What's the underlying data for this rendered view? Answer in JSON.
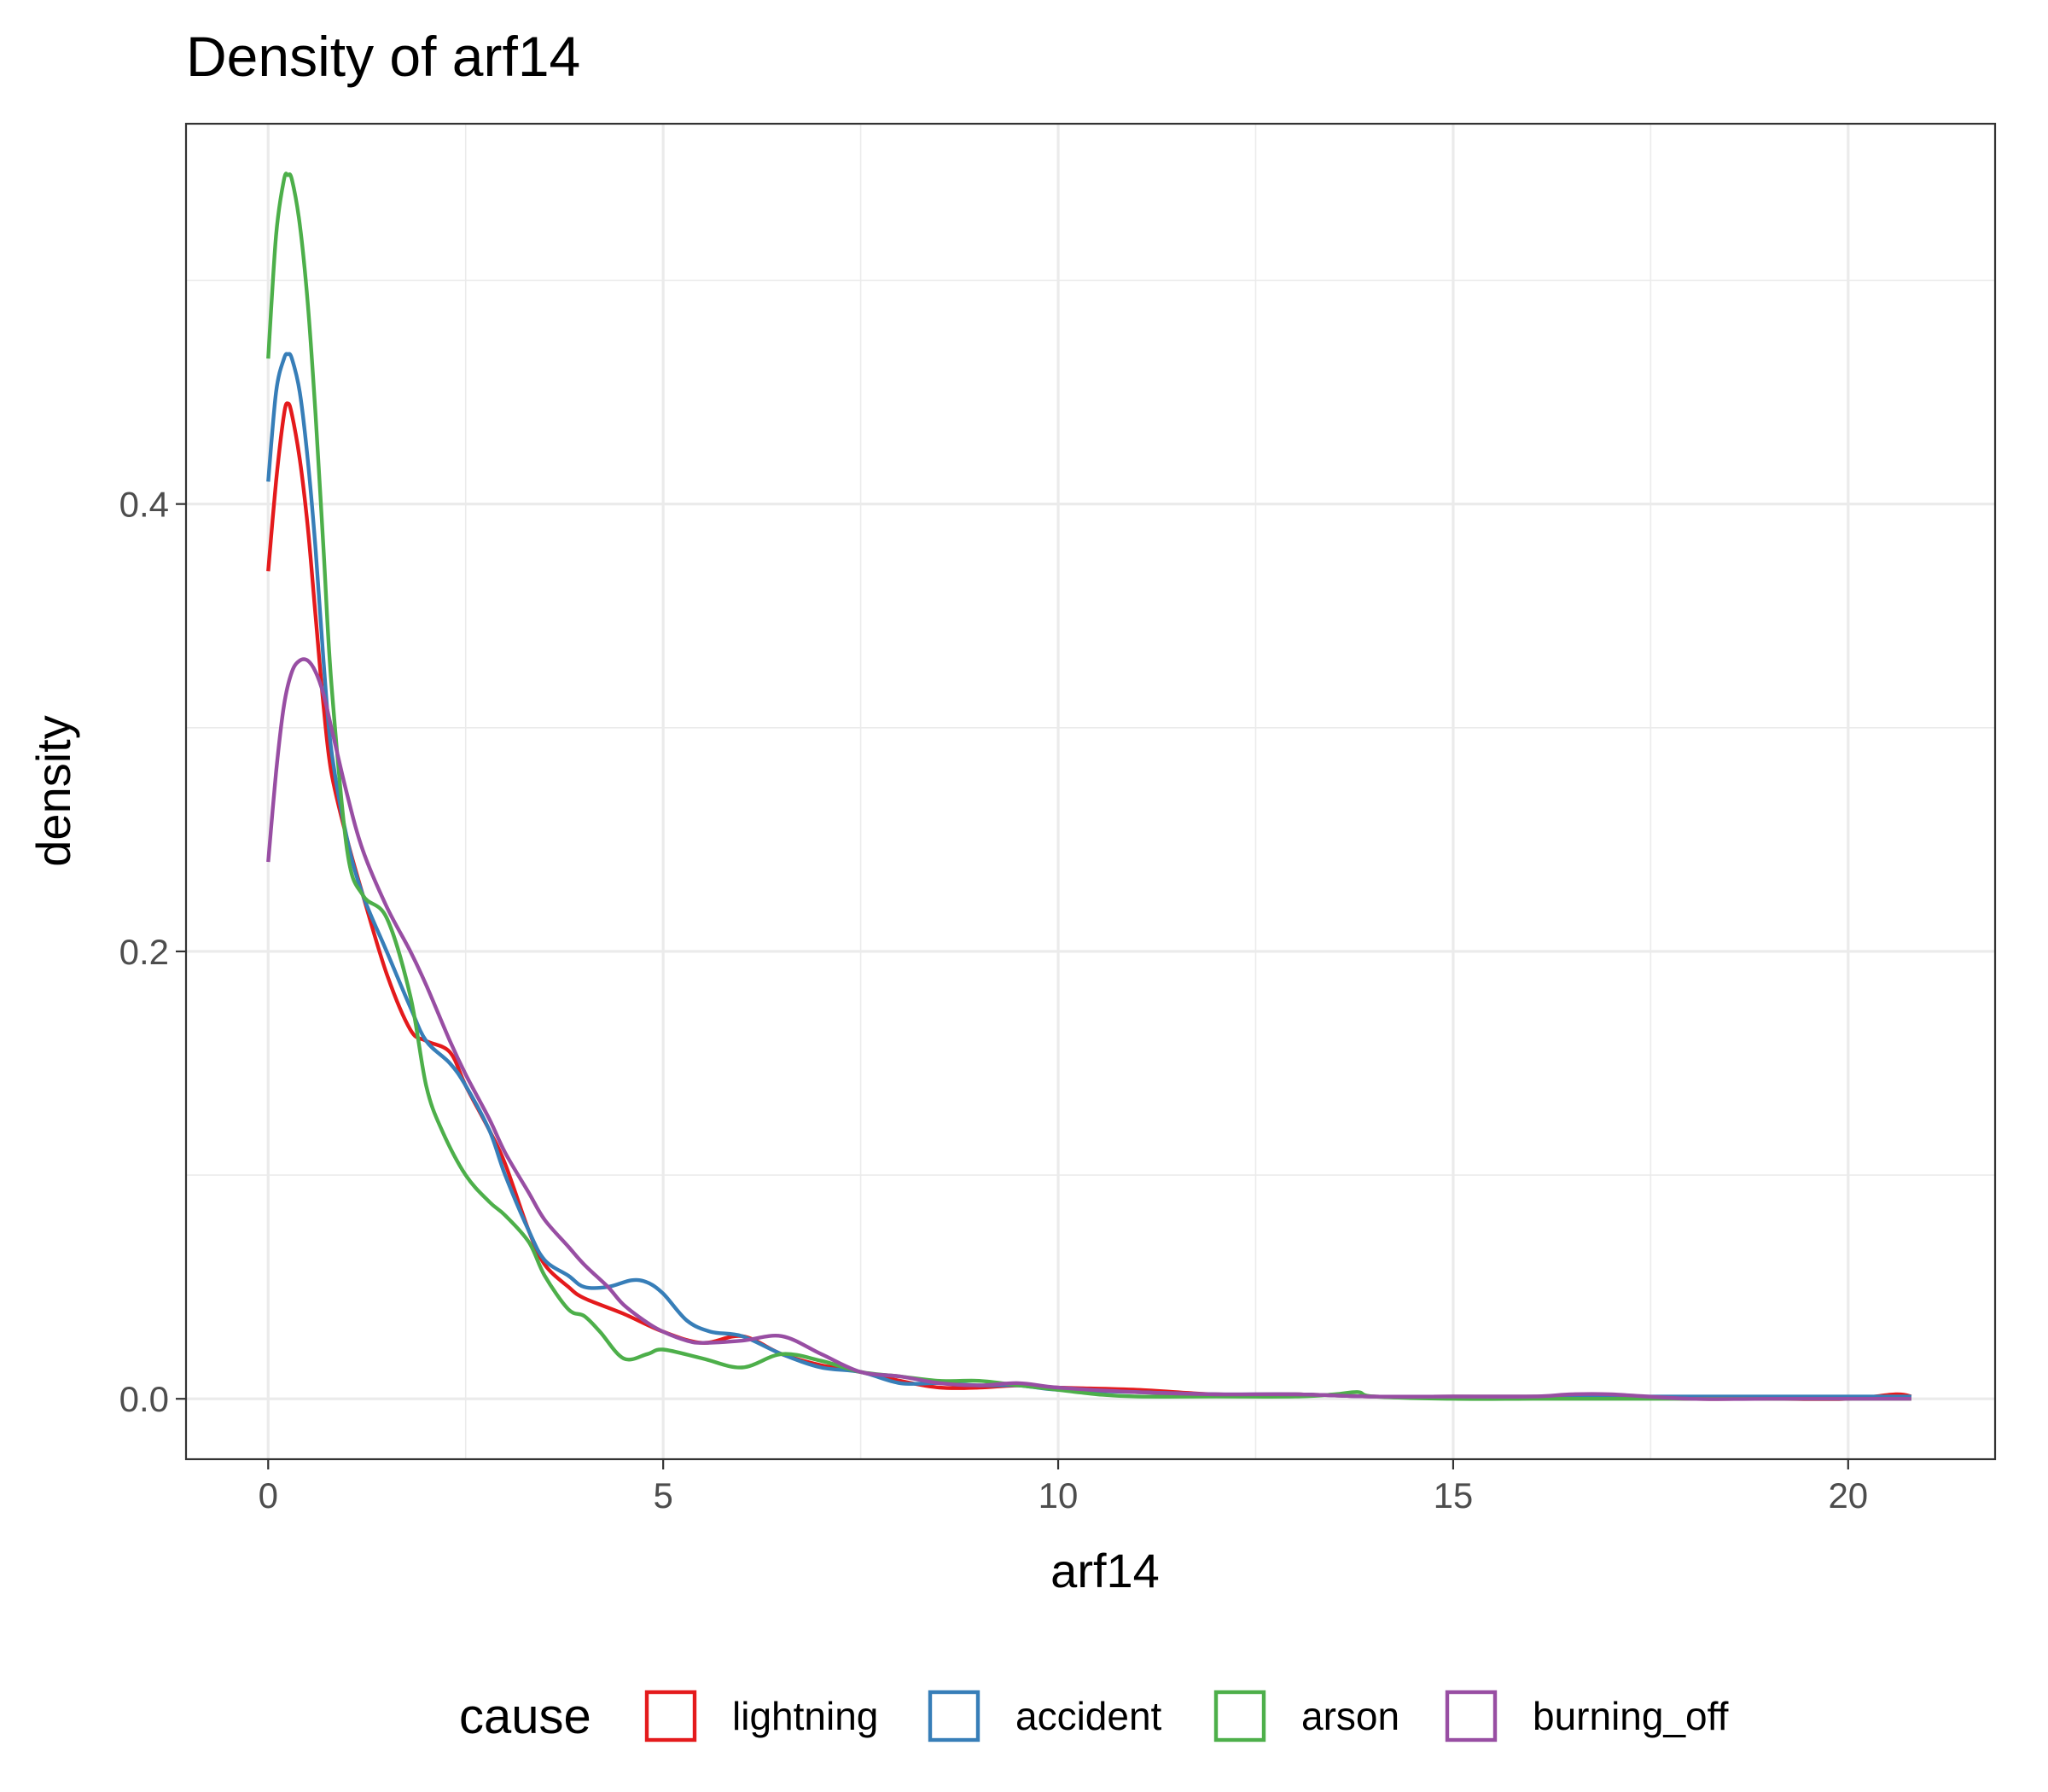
{
  "chart_data": {
    "type": "line",
    "title": "Density of arf14",
    "xlabel": "arf14",
    "ylabel": "density",
    "xlim": [
      -1.04,
      21.86
    ],
    "ylim": [
      -0.027,
      0.57
    ],
    "xticks": [
      0,
      5,
      10,
      15,
      20
    ],
    "xtick_labels": [
      "0",
      "5",
      "10",
      "15",
      "20"
    ],
    "yticks": [
      0.0,
      0.2,
      0.4
    ],
    "ytick_labels": [
      "0.0",
      "0.2",
      "0.4"
    ],
    "grid": true,
    "legend_title": "cause",
    "legend_position": "bottom",
    "series": [
      {
        "name": "lightning",
        "color": "#e41a1c",
        "x": [
          0,
          0.1,
          0.2,
          0.25,
          0.3,
          0.4,
          0.5,
          0.6,
          0.7,
          0.8,
          1.0,
          1.2,
          1.5,
          1.8,
          2.0,
          2.3,
          2.5,
          2.8,
          3.0,
          3.3,
          3.5,
          3.8,
          4.0,
          4.5,
          5.0,
          5.5,
          6.0,
          6.5,
          7.0,
          7.5,
          8.0,
          8.5,
          9.0,
          9.5,
          10,
          11,
          12,
          13,
          14,
          15,
          16,
          17,
          18,
          19,
          20,
          20.6,
          20.8
        ],
        "y": [
          0.37,
          0.41,
          0.44,
          0.445,
          0.44,
          0.42,
          0.39,
          0.35,
          0.31,
          0.28,
          0.25,
          0.225,
          0.19,
          0.165,
          0.16,
          0.155,
          0.14,
          0.12,
          0.105,
          0.075,
          0.06,
          0.05,
          0.045,
          0.038,
          0.03,
          0.025,
          0.028,
          0.02,
          0.015,
          0.012,
          0.008,
          0.005,
          0.005,
          0.006,
          0.005,
          0.004,
          0.002,
          0.002,
          0.001,
          0.001,
          0.001,
          0.001,
          0,
          0,
          0,
          0.002,
          0.001
        ]
      },
      {
        "name": "accident",
        "color": "#377eb8",
        "x": [
          0,
          0.1,
          0.2,
          0.25,
          0.3,
          0.4,
          0.5,
          0.6,
          0.7,
          0.8,
          1.0,
          1.2,
          1.5,
          1.8,
          2.0,
          2.3,
          2.5,
          2.8,
          3.0,
          3.3,
          3.5,
          3.8,
          4.0,
          4.3,
          4.6,
          4.8,
          5.0,
          5.3,
          5.6,
          6.0,
          6.5,
          7.0,
          7.5,
          8.0,
          8.5,
          9.0,
          9.5,
          10,
          11,
          12,
          13,
          14,
          15,
          16,
          17,
          18,
          19,
          20,
          20.8
        ],
        "y": [
          0.41,
          0.45,
          0.465,
          0.467,
          0.465,
          0.45,
          0.42,
          0.38,
          0.33,
          0.29,
          0.25,
          0.225,
          0.2,
          0.175,
          0.16,
          0.15,
          0.14,
          0.12,
          0.1,
          0.075,
          0.062,
          0.055,
          0.05,
          0.05,
          0.053,
          0.052,
          0.047,
          0.035,
          0.03,
          0.028,
          0.02,
          0.014,
          0.012,
          0.007,
          0.007,
          0.006,
          0.006,
          0.004,
          0.003,
          0.002,
          0.002,
          0.001,
          0.001,
          0.001,
          0.001,
          0.001,
          0.001,
          0.001,
          0.001
        ]
      },
      {
        "name": "arson",
        "color": "#4daf4a",
        "x": [
          0,
          0.1,
          0.2,
          0.25,
          0.3,
          0.4,
          0.5,
          0.6,
          0.7,
          0.8,
          1.0,
          1.2,
          1.5,
          1.8,
          2.0,
          2.2,
          2.5,
          2.8,
          3.0,
          3.3,
          3.5,
          3.8,
          4.0,
          4.2,
          4.5,
          4.8,
          5.0,
          5.5,
          6.0,
          6.5,
          7.0,
          7.5,
          8.0,
          8.5,
          9.0,
          9.5,
          10,
          10.5,
          11,
          12,
          13,
          13.5,
          13.8,
          14,
          15,
          16,
          17,
          18,
          19,
          20,
          20.8
        ],
        "y": [
          0.465,
          0.52,
          0.545,
          0.547,
          0.545,
          0.525,
          0.49,
          0.44,
          0.38,
          0.32,
          0.245,
          0.225,
          0.215,
          0.18,
          0.14,
          0.12,
          0.1,
          0.088,
          0.082,
          0.07,
          0.055,
          0.04,
          0.037,
          0.03,
          0.018,
          0.02,
          0.022,
          0.018,
          0.014,
          0.02,
          0.017,
          0.012,
          0.01,
          0.008,
          0.008,
          0.006,
          0.004,
          0.002,
          0.001,
          0.001,
          0.001,
          0.002,
          0.003,
          0.001,
          0,
          0,
          0,
          0,
          0,
          0,
          0
        ]
      },
      {
        "name": "burning_off",
        "color": "#984ea3",
        "x": [
          0,
          0.1,
          0.2,
          0.3,
          0.4,
          0.5,
          0.6,
          0.7,
          0.8,
          1.0,
          1.2,
          1.5,
          1.8,
          2.0,
          2.3,
          2.5,
          2.8,
          3.0,
          3.3,
          3.5,
          3.8,
          4.0,
          4.3,
          4.5,
          4.8,
          5.0,
          5.3,
          5.5,
          6.0,
          6.5,
          7.0,
          7.5,
          8.0,
          8.5,
          9.0,
          9.5,
          10,
          11,
          12,
          13,
          14,
          15,
          16,
          16.5,
          17,
          18,
          19,
          20,
          20.8
        ],
        "y": [
          0.24,
          0.28,
          0.31,
          0.325,
          0.33,
          0.33,
          0.325,
          0.315,
          0.3,
          0.27,
          0.245,
          0.22,
          0.2,
          0.185,
          0.16,
          0.145,
          0.125,
          0.11,
          0.092,
          0.08,
          0.068,
          0.06,
          0.05,
          0.042,
          0.034,
          0.03,
          0.026,
          0.025,
          0.026,
          0.028,
          0.02,
          0.012,
          0.01,
          0.007,
          0.006,
          0.007,
          0.005,
          0.003,
          0.002,
          0.002,
          0.001,
          0.001,
          0.001,
          0.002,
          0.002,
          0,
          0,
          0,
          0
        ]
      }
    ]
  }
}
